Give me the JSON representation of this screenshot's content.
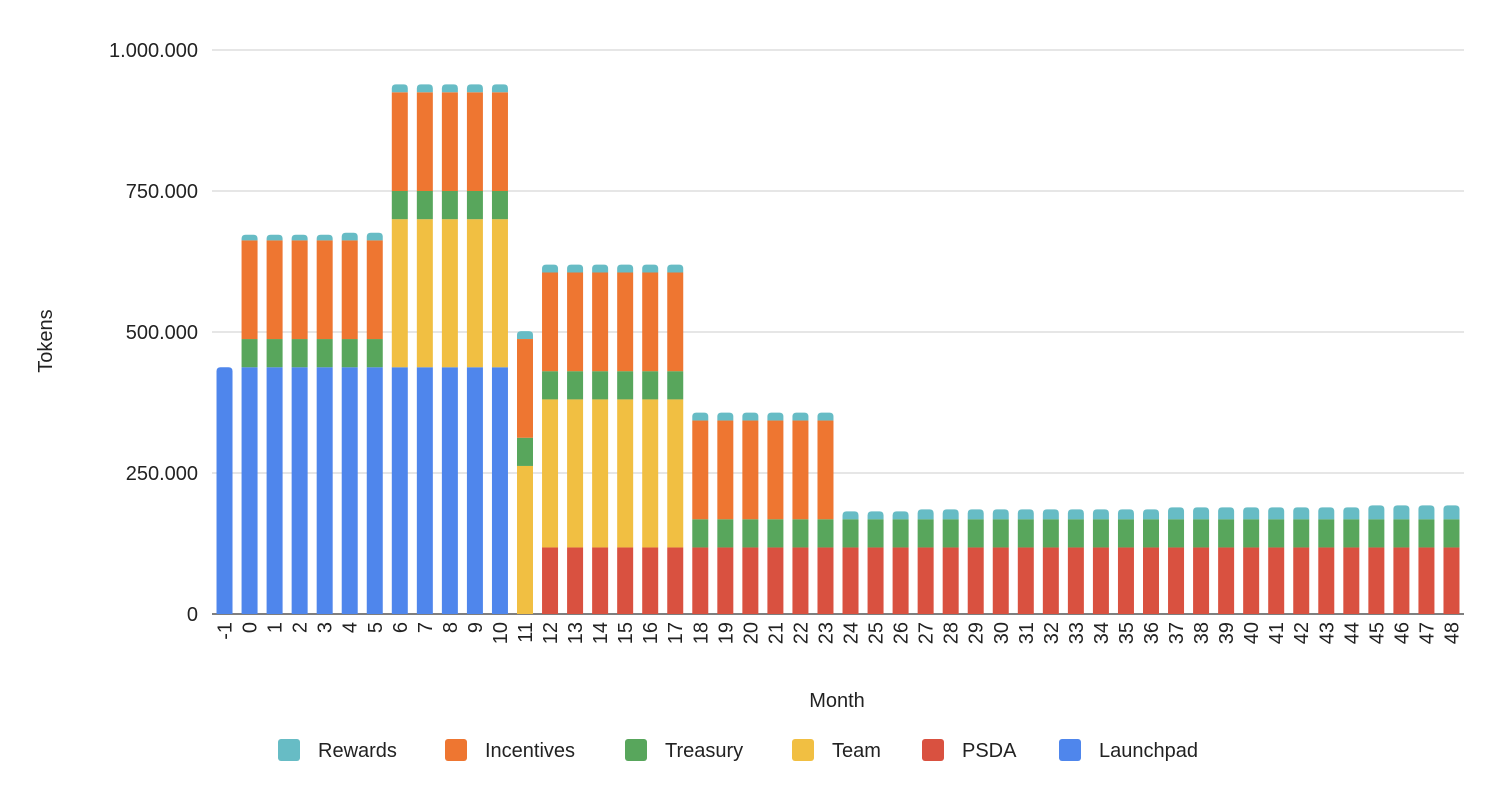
{
  "chart_data": {
    "type": "bar",
    "stacked": true,
    "title": "",
    "xlabel": "Month",
    "ylabel": "Tokens",
    "ylim": [
      0,
      1000000
    ],
    "yticks": [
      0,
      250000,
      500000,
      750000,
      1000000
    ],
    "ytick_labels": [
      "0",
      "250.000",
      "500.000",
      "750.000",
      "1.000.000"
    ],
    "grid": true,
    "legend_position": "bottom",
    "categories": [
      "-1",
      "0",
      "1",
      "2",
      "3",
      "4",
      "5",
      "6",
      "7",
      "8",
      "9",
      "10",
      "11",
      "12",
      "13",
      "14",
      "15",
      "16",
      "17",
      "18",
      "19",
      "20",
      "21",
      "22",
      "23",
      "24",
      "25",
      "26",
      "27",
      "28",
      "29",
      "30",
      "31",
      "32",
      "33",
      "34",
      "35",
      "36",
      "37",
      "38",
      "39",
      "40",
      "41",
      "42",
      "43",
      "44",
      "45",
      "46",
      "47",
      "48"
    ],
    "series": [
      {
        "name": "Launchpad",
        "color": "#4f86ec",
        "values": [
          437500,
          437500,
          437500,
          437500,
          437500,
          437500,
          437500,
          437500,
          437500,
          437500,
          437500,
          437500,
          0,
          0,
          0,
          0,
          0,
          0,
          0,
          0,
          0,
          0,
          0,
          0,
          0,
          0,
          0,
          0,
          0,
          0,
          0,
          0,
          0,
          0,
          0,
          0,
          0,
          0,
          0,
          0,
          0,
          0,
          0,
          0,
          0,
          0,
          0,
          0,
          0,
          0
        ]
      },
      {
        "name": "PSDA",
        "color": "#d95140",
        "values": [
          0,
          0,
          0,
          0,
          0,
          0,
          0,
          0,
          0,
          0,
          0,
          0,
          0,
          118000,
          118000,
          118000,
          118000,
          118000,
          118000,
          118000,
          118000,
          118000,
          118000,
          118000,
          118000,
          118000,
          118000,
          118000,
          118000,
          118000,
          118000,
          118000,
          118000,
          118000,
          118000,
          118000,
          118000,
          118000,
          118000,
          118000,
          118000,
          118000,
          118000,
          118000,
          118000,
          118000,
          118000,
          118000,
          118000,
          118000
        ]
      },
      {
        "name": "Team",
        "color": "#f1bf42",
        "values": [
          0,
          0,
          0,
          0,
          0,
          0,
          0,
          262500,
          262500,
          262500,
          262500,
          262500,
          262500,
          262500,
          262500,
          262500,
          262500,
          262500,
          262500,
          0,
          0,
          0,
          0,
          0,
          0,
          0,
          0,
          0,
          0,
          0,
          0,
          0,
          0,
          0,
          0,
          0,
          0,
          0,
          0,
          0,
          0,
          0,
          0,
          0,
          0,
          0,
          0,
          0,
          0,
          0
        ]
      },
      {
        "name": "Treasury",
        "color": "#58a65c",
        "values": [
          0,
          50000,
          50000,
          50000,
          50000,
          50000,
          50000,
          50000,
          50000,
          50000,
          50000,
          50000,
          50000,
          50000,
          50000,
          50000,
          50000,
          50000,
          50000,
          50000,
          50000,
          50000,
          50000,
          50000,
          50000,
          50000,
          50000,
          50000,
          50000,
          50000,
          50000,
          50000,
          50000,
          50000,
          50000,
          50000,
          50000,
          50000,
          50000,
          50000,
          50000,
          50000,
          50000,
          50000,
          50000,
          50000,
          50000,
          50000,
          50000,
          50000
        ]
      },
      {
        "name": "Incentives",
        "color": "#ee7631",
        "values": [
          0,
          175000,
          175000,
          175000,
          175000,
          175000,
          175000,
          175000,
          175000,
          175000,
          175000,
          175000,
          175000,
          175000,
          175000,
          175000,
          175000,
          175000,
          175000,
          175000,
          175000,
          175000,
          175000,
          175000,
          175000,
          0,
          0,
          0,
          0,
          0,
          0,
          0,
          0,
          0,
          0,
          0,
          0,
          0,
          0,
          0,
          0,
          0,
          0,
          0,
          0,
          0,
          0,
          0,
          0,
          0
        ]
      },
      {
        "name": "Rewards",
        "color": "#67bcc5",
        "values": [
          0,
          10000,
          10000,
          10000,
          10000,
          13500,
          13500,
          14000,
          14000,
          14000,
          14000,
          14000,
          14000,
          14000,
          14000,
          14000,
          14000,
          14000,
          14000,
          14000,
          14000,
          14000,
          14000,
          14000,
          14000,
          14000,
          14000,
          14000,
          17500,
          17500,
          17500,
          17500,
          17500,
          17500,
          17500,
          17500,
          17500,
          17500,
          21000,
          21000,
          21000,
          21000,
          21000,
          21000,
          21000,
          21000,
          24500,
          24500,
          24500,
          24500
        ]
      }
    ],
    "legend_order": [
      "Rewards",
      "Incentives",
      "Treasury",
      "Team",
      "PSDA",
      "Launchpad"
    ]
  }
}
